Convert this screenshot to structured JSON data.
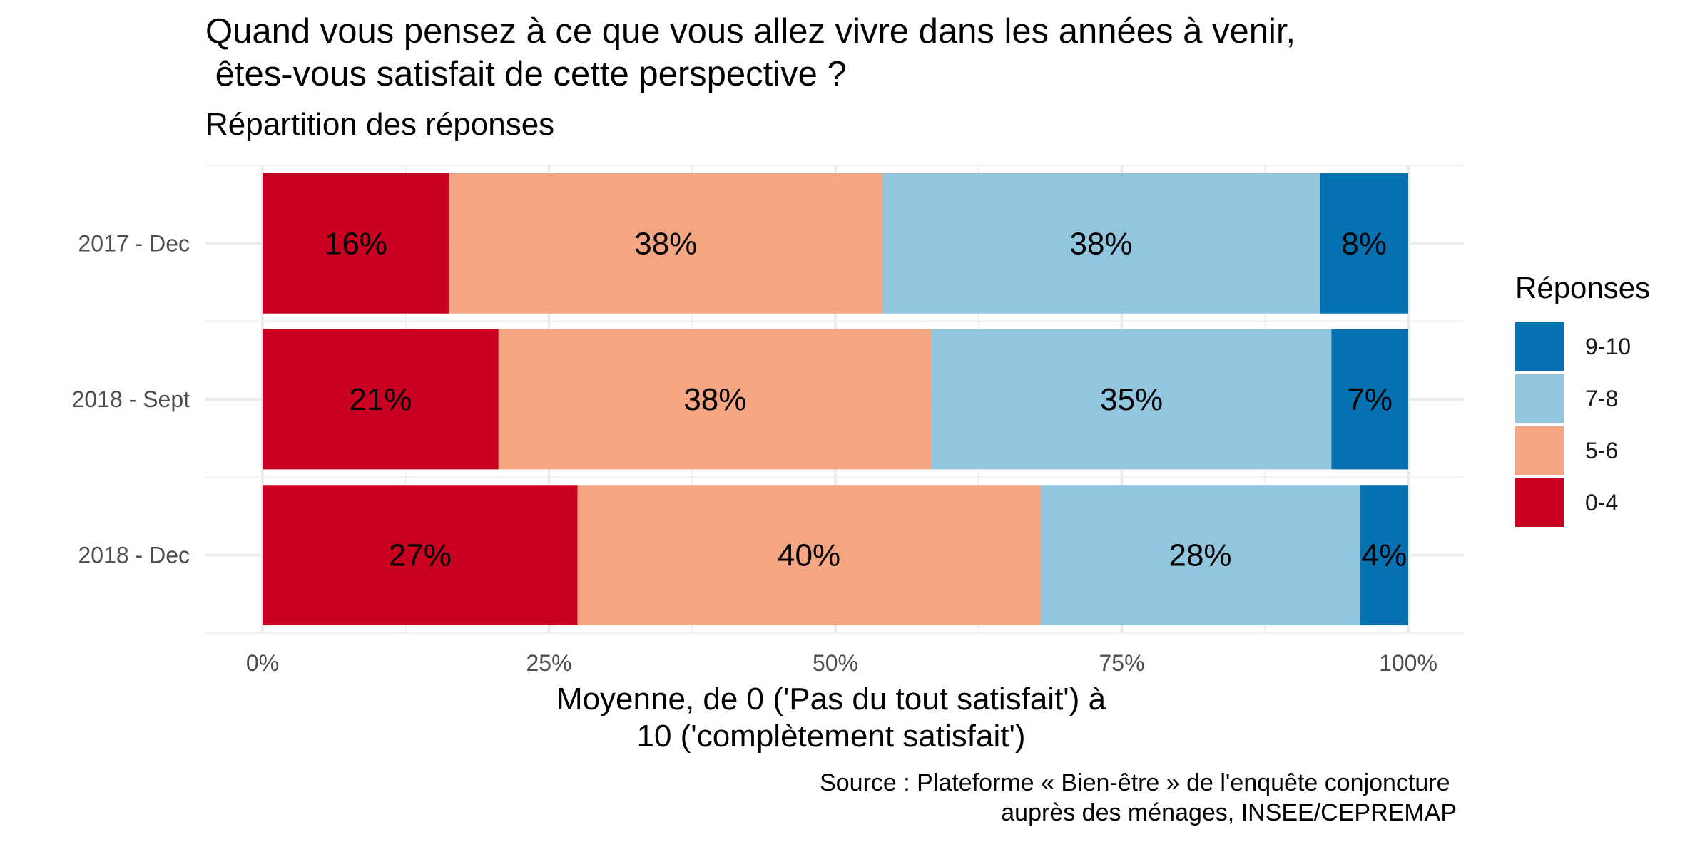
{
  "chart_data": {
    "type": "bar",
    "orientation": "horizontal",
    "stacked": true,
    "title": "Quand vous pensez à ce que vous allez vivre dans les années à venir,\n êtes-vous satisfait de cette perspective ?",
    "subtitle": "Répartition des réponses",
    "xlabel": "Moyenne, de 0 ('Pas du tout satisfait') à\n10 ('complètement satisfait')",
    "ylabel": "",
    "caption": "Source : Plateforme « Bien-être » de l'enquête conjoncture \nauprès des ménages, INSEE/CEPREMAP",
    "categories": [
      "2017 - Dec",
      "2018 - Sept",
      "2018 - Dec"
    ],
    "xlim": [
      0,
      100
    ],
    "x_ticks": [
      "0%",
      "25%",
      "50%",
      "75%",
      "100%"
    ],
    "grid": true,
    "legend": {
      "title": "Réponses",
      "position": "right",
      "order": [
        "9-10",
        "7-8",
        "5-6",
        "0-4"
      ]
    },
    "series": [
      {
        "name": "0-4",
        "color": "#ca0020",
        "values": [
          16.3,
          20.6,
          27.5
        ],
        "labels": [
          "16%",
          "21%",
          "27%"
        ]
      },
      {
        "name": "5-6",
        "color": "#f4a582",
        "values": [
          37.8,
          37.8,
          40.4
        ],
        "labels": [
          "38%",
          "38%",
          "40%"
        ]
      },
      {
        "name": "7-8",
        "color": "#92c5de",
        "values": [
          38.2,
          34.9,
          27.9
        ],
        "labels": [
          "38%",
          "35%",
          "28%"
        ]
      },
      {
        "name": "9-10",
        "color": "#0571b0",
        "values": [
          7.7,
          6.7,
          4.2
        ],
        "labels": [
          "8%",
          "7%",
          "4%"
        ]
      }
    ]
  }
}
